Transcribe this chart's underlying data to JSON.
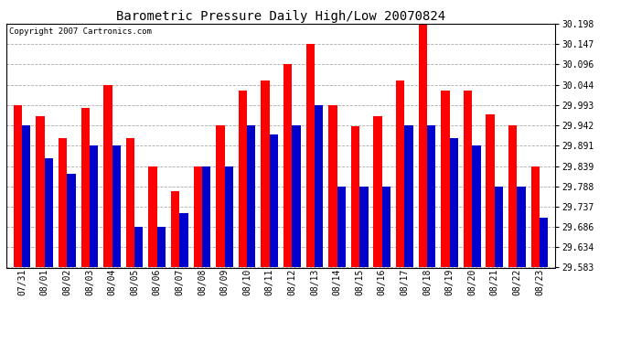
{
  "title": "Barometric Pressure Daily High/Low 20070824",
  "copyright": "Copyright 2007 Cartronics.com",
  "dates": [
    "07/31",
    "08/01",
    "08/02",
    "08/03",
    "08/04",
    "08/05",
    "08/06",
    "08/07",
    "08/08",
    "08/09",
    "08/10",
    "08/11",
    "08/12",
    "08/13",
    "08/14",
    "08/15",
    "08/16",
    "08/17",
    "08/18",
    "08/19",
    "08/20",
    "08/21",
    "08/22",
    "08/23"
  ],
  "highs": [
    29.993,
    29.965,
    29.91,
    29.985,
    30.044,
    29.91,
    29.839,
    29.775,
    29.839,
    29.942,
    30.03,
    30.055,
    30.096,
    30.147,
    29.993,
    29.94,
    29.965,
    30.055,
    30.198,
    30.03,
    30.03,
    29.97,
    29.942,
    29.839
  ],
  "lows": [
    29.942,
    29.86,
    29.82,
    29.891,
    29.891,
    29.686,
    29.686,
    29.72,
    29.839,
    29.839,
    29.942,
    29.92,
    29.942,
    29.993,
    29.788,
    29.788,
    29.788,
    29.942,
    29.942,
    29.91,
    29.891,
    29.788,
    29.788,
    29.71
  ],
  "ylim_min": 29.583,
  "ylim_max": 30.198,
  "yticks": [
    29.583,
    29.634,
    29.686,
    29.737,
    29.788,
    29.839,
    29.891,
    29.942,
    29.993,
    30.044,
    30.096,
    30.147,
    30.198
  ],
  "high_color": "#ff0000",
  "low_color": "#0000cc",
  "bg_color": "#ffffff",
  "grid_color": "#aaaaaa",
  "title_fontsize": 10,
  "copyright_fontsize": 6.5,
  "tick_fontsize": 7,
  "bar_width": 0.38
}
